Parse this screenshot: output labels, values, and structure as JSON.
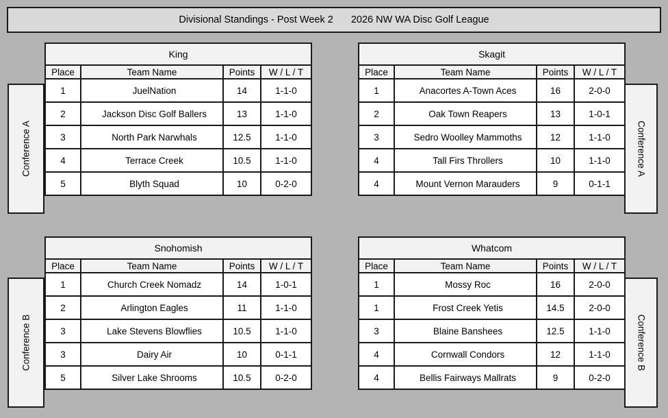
{
  "banner": {
    "title_left": "Divisional Standings - Post Week 2",
    "title_right": "2026 NW WA Disc Golf League"
  },
  "columns": [
    "Place",
    "Team Name",
    "Points",
    "W / L / T"
  ],
  "divisions": [
    {
      "name": "King",
      "conference": "Conference A",
      "rows": [
        [
          "1",
          "JuelNation",
          "14",
          "1-1-0"
        ],
        [
          "2",
          "Jackson Disc Golf Ballers",
          "13",
          "1-1-0"
        ],
        [
          "3",
          "North Park Narwhals",
          "12.5",
          "1-1-0"
        ],
        [
          "4",
          "Terrace Creek",
          "10.5",
          "1-1-0"
        ],
        [
          "5",
          "Blyth Squad",
          "10",
          "0-2-0"
        ]
      ]
    },
    {
      "name": "Skagit",
      "conference": "Conference A",
      "rows": [
        [
          "1",
          "Anacortes A-Town Aces",
          "16",
          "2-0-0"
        ],
        [
          "2",
          "Oak Town Reapers",
          "13",
          "1-0-1"
        ],
        [
          "3",
          "Sedro Woolley Mammoths",
          "12",
          "1-1-0"
        ],
        [
          "4",
          "Tall Firs Throllers",
          "10",
          "1-1-0"
        ],
        [
          "4",
          "Mount Vernon Marauders",
          "9",
          "0-1-1"
        ]
      ]
    },
    {
      "name": "Snohomish",
      "conference": "Conference B",
      "rows": [
        [
          "1",
          "Church Creek Nomadz",
          "14",
          "1-0-1"
        ],
        [
          "2",
          "Arlington Eagles",
          "11",
          "1-1-0"
        ],
        [
          "3",
          "Lake Stevens Blowflies",
          "10.5",
          "1-1-0"
        ],
        [
          "3",
          "Dairy Air",
          "10",
          "0-1-1"
        ],
        [
          "5",
          "Silver Lake Shrooms",
          "10.5",
          "0-2-0"
        ]
      ]
    },
    {
      "name": "Whatcom",
      "conference": "Conference B",
      "rows": [
        [
          "1",
          "Mossy Roc",
          "16",
          "2-0-0"
        ],
        [
          "1",
          "Frost Creek Yetis",
          "14.5",
          "2-0-0"
        ],
        [
          "3",
          "Blaine Banshees",
          "12.5",
          "1-1-0"
        ],
        [
          "4",
          "Cornwall Condors",
          "12",
          "1-1-0"
        ],
        [
          "4",
          "Bellis Fairways Mallrats",
          "9",
          "0-2-0"
        ]
      ]
    }
  ],
  "conference_labels": {
    "a": "Conference A",
    "b": "Conference B"
  },
  "colors": {
    "page_bg": "#b4b4b4",
    "banner_bg": "#d9d9d9",
    "header_bg": "#f2f2f2",
    "cell_bg": "#ffffff",
    "border": "#1a1a1a",
    "text": "#000000"
  }
}
